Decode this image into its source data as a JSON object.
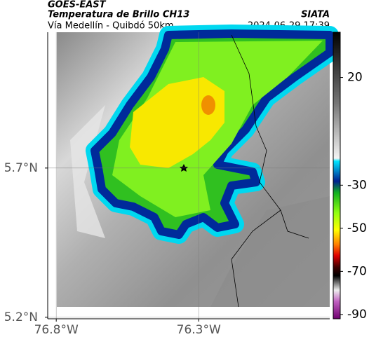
{
  "header": {
    "source": "GOES-EAST",
    "title": "Temperatura de Brillo CH13",
    "subtitle": "Vía Medellín - Quibdó 50km",
    "organization": "SIATA",
    "timestamp": "2024-06-29 17:39"
  },
  "map": {
    "lon_lim": [
      -76.83,
      -75.84
    ],
    "lat_lim": [
      5.195,
      6.155
    ],
    "lon_ticks": [
      {
        "value": -76.8,
        "label": "76.8°W"
      },
      {
        "value": -76.3,
        "label": "76.3°W"
      }
    ],
    "lat_ticks": [
      {
        "value": 5.7,
        "label": "5.7°N"
      },
      {
        "value": 5.2,
        "label": "5.2°N"
      }
    ],
    "grid": true
  },
  "colorbar": {
    "lim": [
      -92,
      41
    ],
    "ticks": [
      20,
      -30,
      -50,
      -70,
      -90
    ]
  }
}
